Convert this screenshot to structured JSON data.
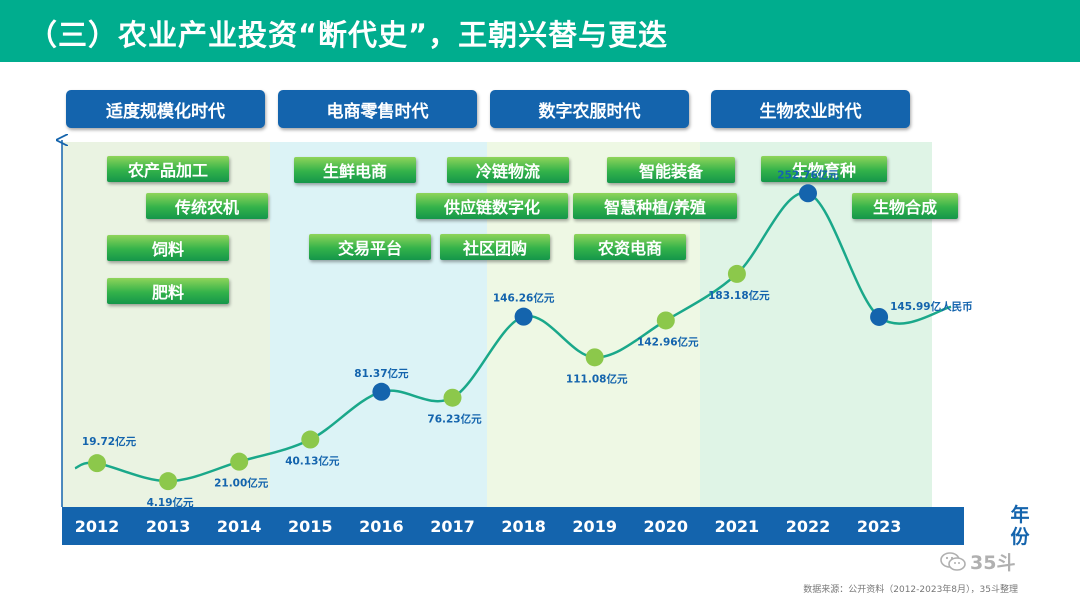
{
  "title": "（三）农业产业投资“断代史”，王朝兴替与更迭",
  "eras": [
    "适度规模化时代",
    "电商零售时代",
    "数字农服时代",
    "生物农业时代"
  ],
  "tags": {
    "era1": [
      "农产品加工",
      "传统农机",
      "饲料",
      "肥料"
    ],
    "era2": [
      "生鲜电商",
      "交易平台",
      "冷链物流",
      "供应链数字化",
      "社区团购"
    ],
    "era3": [
      "智能装备",
      "智慧种植/养殖",
      "农资电商"
    ],
    "era4": [
      "生物育种",
      "生物合成"
    ]
  },
  "chart_data": {
    "type": "line",
    "categories": [
      "2012",
      "2013",
      "2014",
      "2015",
      "2016",
      "2017",
      "2018",
      "2019",
      "2020",
      "2021",
      "2022",
      "2023"
    ],
    "values": [
      19.72,
      4.19,
      21.0,
      40.13,
      81.37,
      76.23,
      146.26,
      111.08,
      142.96,
      183.18,
      252.76,
      145.99
    ],
    "data_labels": [
      "19.72亿元",
      "4.19亿元",
      "21.00亿元",
      "40.13亿元",
      "81.37亿元",
      "76.23亿元",
      "146.26亿元",
      "111.08亿元",
      "142.96亿元",
      "183.18亿元",
      "252.76亿元",
      "145.99亿人民币"
    ],
    "highlight_points": [
      "2016",
      "2018",
      "2022",
      "2023"
    ],
    "xlabel": "年份",
    "ylabel": "",
    "ylim": [
      0,
      280
    ],
    "grid": false,
    "colors": {
      "line": "#1aa88a",
      "point": "#8cc84b",
      "highlight_point": "#1464ad",
      "axis_bar": "#1464ad",
      "label": "#1464ad"
    }
  },
  "source": "数据来源：公开资料（2012-2023年8月），35斗整理",
  "watermark": "35斗",
  "colors": {
    "title_bar": "#00ad8e",
    "era_box": "#1464ad"
  }
}
